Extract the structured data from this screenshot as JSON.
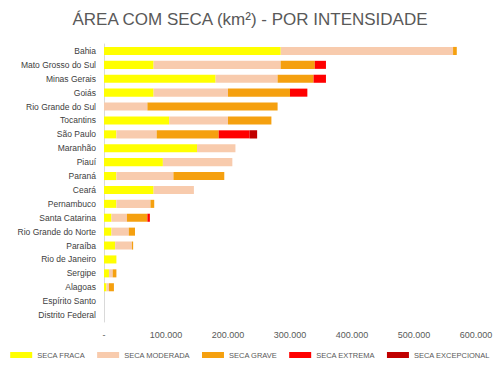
{
  "chart_data": {
    "type": "bar",
    "title": "ÁREA COM SECA (km²) - POR INTENSIDADE",
    "orientation": "horizontal",
    "stacked": true,
    "grid": false,
    "legend": "bottom",
    "categories": [
      "Bahia",
      "Mato Grosso do Sul",
      "Minas Gerais",
      "Goiás",
      "Rio Grande do Sul",
      "Tocantins",
      "São Paulo",
      "Maranhão",
      "Piauí",
      "Paraná",
      "Ceará",
      "Pernambuco",
      "Santa Catarina",
      "Rio Grande do Norte",
      "Paraíba",
      "Rio de Janeiro",
      "Sergipe",
      "Alagoas",
      "Espírito Santo",
      "Distrito Federal"
    ],
    "series": [
      {
        "name": "SECA FRACA",
        "color": "#ffff00",
        "values": [
          285000,
          80000,
          180000,
          80000,
          0,
          105000,
          20000,
          150000,
          95000,
          20000,
          80000,
          20000,
          12000,
          12000,
          18000,
          20000,
          8000,
          4000,
          0,
          0
        ]
      },
      {
        "name": "SECA MODERADA",
        "color": "#f8cbad",
        "values": [
          278000,
          205000,
          100000,
          120000,
          70000,
          95000,
          65000,
          62000,
          112000,
          92000,
          65000,
          55000,
          25000,
          28000,
          27000,
          0,
          6000,
          4000,
          0,
          0
        ]
      },
      {
        "name": "SECA GRAVE",
        "color": "#f5a00f",
        "values": [
          6000,
          55000,
          58000,
          100000,
          210000,
          70000,
          100000,
          0,
          0,
          82000,
          0,
          6000,
          33000,
          10000,
          2000,
          0,
          6000,
          8000,
          0,
          0
        ]
      },
      {
        "name": "SECA EXTREMA",
        "color": "#ff0000",
        "values": [
          0,
          18000,
          20000,
          28000,
          0,
          0,
          50000,
          0,
          0,
          0,
          0,
          0,
          4000,
          0,
          0,
          0,
          0,
          0,
          0,
          0
        ]
      },
      {
        "name": "SECA EXCEPCIONAL",
        "color": "#c00000",
        "values": [
          0,
          0,
          0,
          0,
          0,
          0,
          12000,
          0,
          0,
          0,
          0,
          0,
          0,
          0,
          0,
          0,
          0,
          0,
          0,
          0
        ]
      }
    ],
    "xlim": [
      0,
      600000
    ],
    "xticks": [
      {
        "value": 0,
        "label": "-"
      },
      {
        "value": 100000,
        "label": "100.000"
      },
      {
        "value": 200000,
        "label": "200.000"
      },
      {
        "value": 300000,
        "label": "300.000"
      },
      {
        "value": 400000,
        "label": "400.000"
      },
      {
        "value": 500000,
        "label": "500.000"
      },
      {
        "value": 600000,
        "label": "600.000"
      }
    ]
  }
}
